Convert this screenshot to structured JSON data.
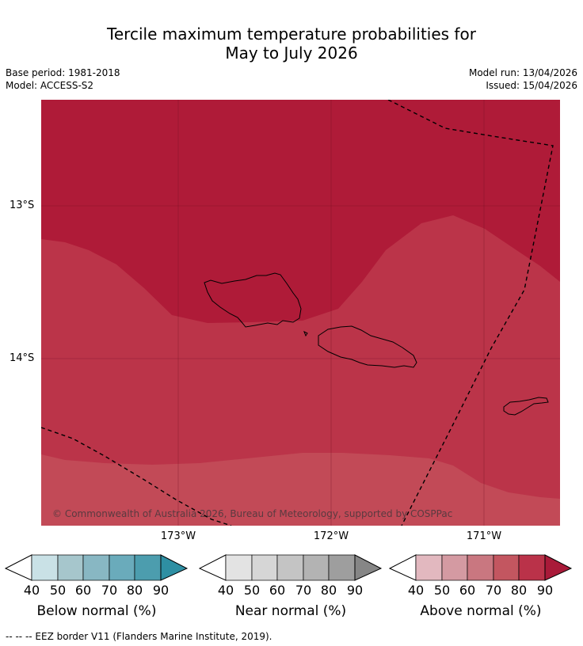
{
  "title_line1": "Tercile maximum temperature probabilities for",
  "title_line2": "May to July 2026",
  "base_period": "Base period: 1981-2018",
  "model": "Model: ACCESS-S2",
  "model_run": "Model run: 13/04/2026",
  "issued": "Issued: 15/04/2026",
  "lat_labels": [
    "13°S",
    "14°S"
  ],
  "lon_labels": [
    "173°W",
    "172°W",
    "171°W"
  ],
  "copyright": "© Commonwealth of Australia 2026, Bureau of Meteorology, supported by COSPPac",
  "colorbars": [
    {
      "title": "Below normal (%)",
      "ticks": [
        "40",
        "50",
        "60",
        "70",
        "80",
        "90"
      ],
      "colors": [
        "#c9e1e6",
        "#a6c6cc",
        "#88b7c3",
        "#6aabbb",
        "#4c9dae",
        "#2e8fa3"
      ]
    },
    {
      "title": "Near normal (%)",
      "ticks": [
        "40",
        "50",
        "60",
        "70",
        "80",
        "90"
      ],
      "colors": [
        "#e3e3e3",
        "#d6d6d6",
        "#c4c4c4",
        "#b3b3b3",
        "#9e9e9e",
        "#868686"
      ]
    },
    {
      "title": "Above normal (%)",
      "ticks": [
        "40",
        "50",
        "60",
        "70",
        "80",
        "90"
      ],
      "colors": [
        "#e2b8bf",
        "#d49aa2",
        "#c97780",
        "#c35660",
        "#ba3249",
        "#a91a39"
      ]
    }
  ],
  "map_colors": {
    "dark": "#af1b38",
    "mid": "#bb3449",
    "light": "#c24a57"
  },
  "footnote": "--  --  -- EEZ border V11 (Flanders Marine Institute, 2019)."
}
